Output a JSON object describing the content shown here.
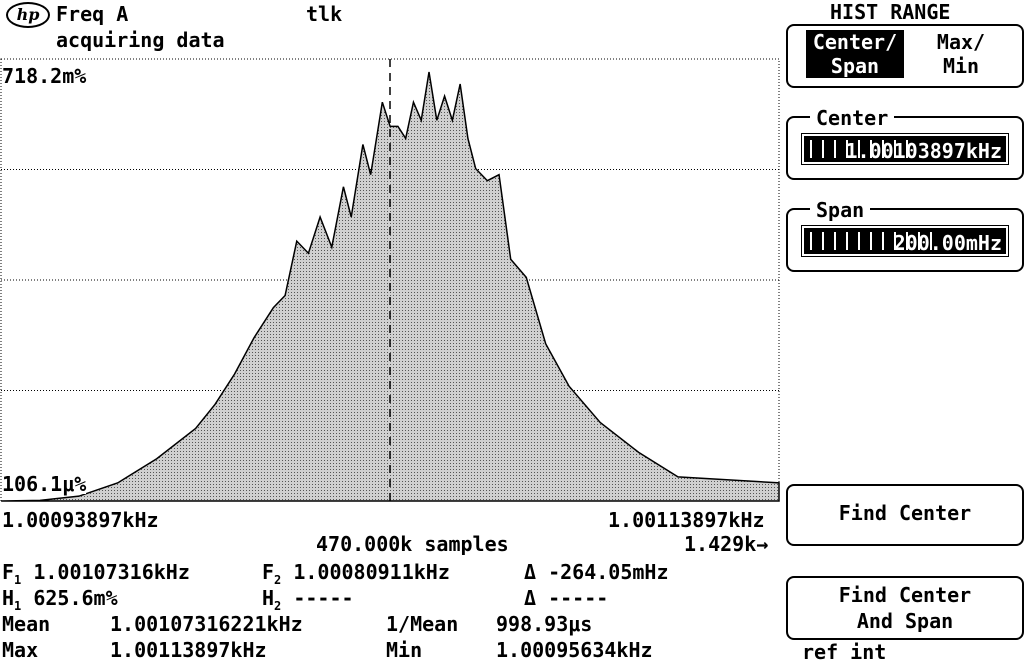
{
  "header": {
    "logo": "hp",
    "measurement": "Freq A",
    "status": "tlk",
    "acquisition": "acquiring data"
  },
  "plot": {
    "y_top_label": "718.2m%",
    "y_bottom_label": "106.1μ%",
    "x_left_label": "1.00093897kHz",
    "x_right_label": "1.00113897kHz",
    "samples": "470.000k samples",
    "scale_readout": "1.429k→"
  },
  "chart_data": {
    "type": "area",
    "x_range": [
      1.00093897,
      1.00113897
    ],
    "x_unit": "kHz",
    "y_range": [
      0.000106,
      0.7182
    ],
    "grid": true,
    "marker_x": 1.00103897,
    "x": [
      1.000939,
      1.000949,
      1.000959,
      1.000969,
      1.000979,
      1.000989,
      1.000994,
      1.000999,
      1.001004,
      1.001009,
      1.001012,
      1.001015,
      1.001018,
      1.001021,
      1.001024,
      1.001027,
      1.001029,
      1.001032,
      1.001034,
      1.001037,
      1.001039,
      1.001041,
      1.001043,
      1.001045,
      1.001047,
      1.001049,
      1.001051,
      1.001053,
      1.001055,
      1.001057,
      1.001059,
      1.001061,
      1.001064,
      1.001067,
      1.00107,
      1.001074,
      1.001079,
      1.001085,
      1.001093,
      1.001103,
      1.001113,
      1.001139
    ],
    "y": [
      0.0,
      0.001,
      0.008,
      0.03,
      0.07,
      0.12,
      0.16,
      0.21,
      0.27,
      0.32,
      0.34,
      0.43,
      0.41,
      0.47,
      0.42,
      0.52,
      0.47,
      0.59,
      0.54,
      0.66,
      0.62,
      0.62,
      0.6,
      0.66,
      0.63,
      0.71,
      0.63,
      0.67,
      0.63,
      0.69,
      0.6,
      0.55,
      0.53,
      0.54,
      0.4,
      0.37,
      0.26,
      0.19,
      0.13,
      0.08,
      0.04,
      0.03
    ]
  },
  "markers": {
    "f1_label": "F",
    "f1_sub": "1",
    "f1_value": "1.00107316kHz",
    "f2_label": "F",
    "f2_sub": "2",
    "f2_value": "1.00080911kHz",
    "delta_f_label": "Δ",
    "delta_f_value": "-264.05mHz",
    "h1_label": "H",
    "h1_sub": "1",
    "h1_value": "625.6m%",
    "h2_label": "H",
    "h2_sub": "2",
    "h2_value": "-----",
    "delta_h_label": "Δ",
    "delta_h_value": "-----"
  },
  "stats": {
    "mean_label": "Mean",
    "mean_value": "1.00107316221kHz",
    "inv_mean_label": "1/Mean",
    "inv_mean_value": "998.93μs",
    "max_label": "Max",
    "max_value": "1.00113897kHz",
    "min_label": "Min",
    "min_value": "1.00095634kHz"
  },
  "softkeys": {
    "menu_title": "HIST RANGE",
    "center_span_label": "Center/\nSpan",
    "max_min_label": "Max/\nMin",
    "center_title": "Center",
    "center_value": "1.00103897kHz",
    "span_title": "Span",
    "span_value": "200.00mHz",
    "find_center_label": "Find Center",
    "find_center_span_label": "Find Center\nAnd Span",
    "ref_status": "ref int"
  },
  "colors": {
    "background": "#ffffff",
    "foreground": "#000000",
    "fill": "#c8c8c8"
  }
}
